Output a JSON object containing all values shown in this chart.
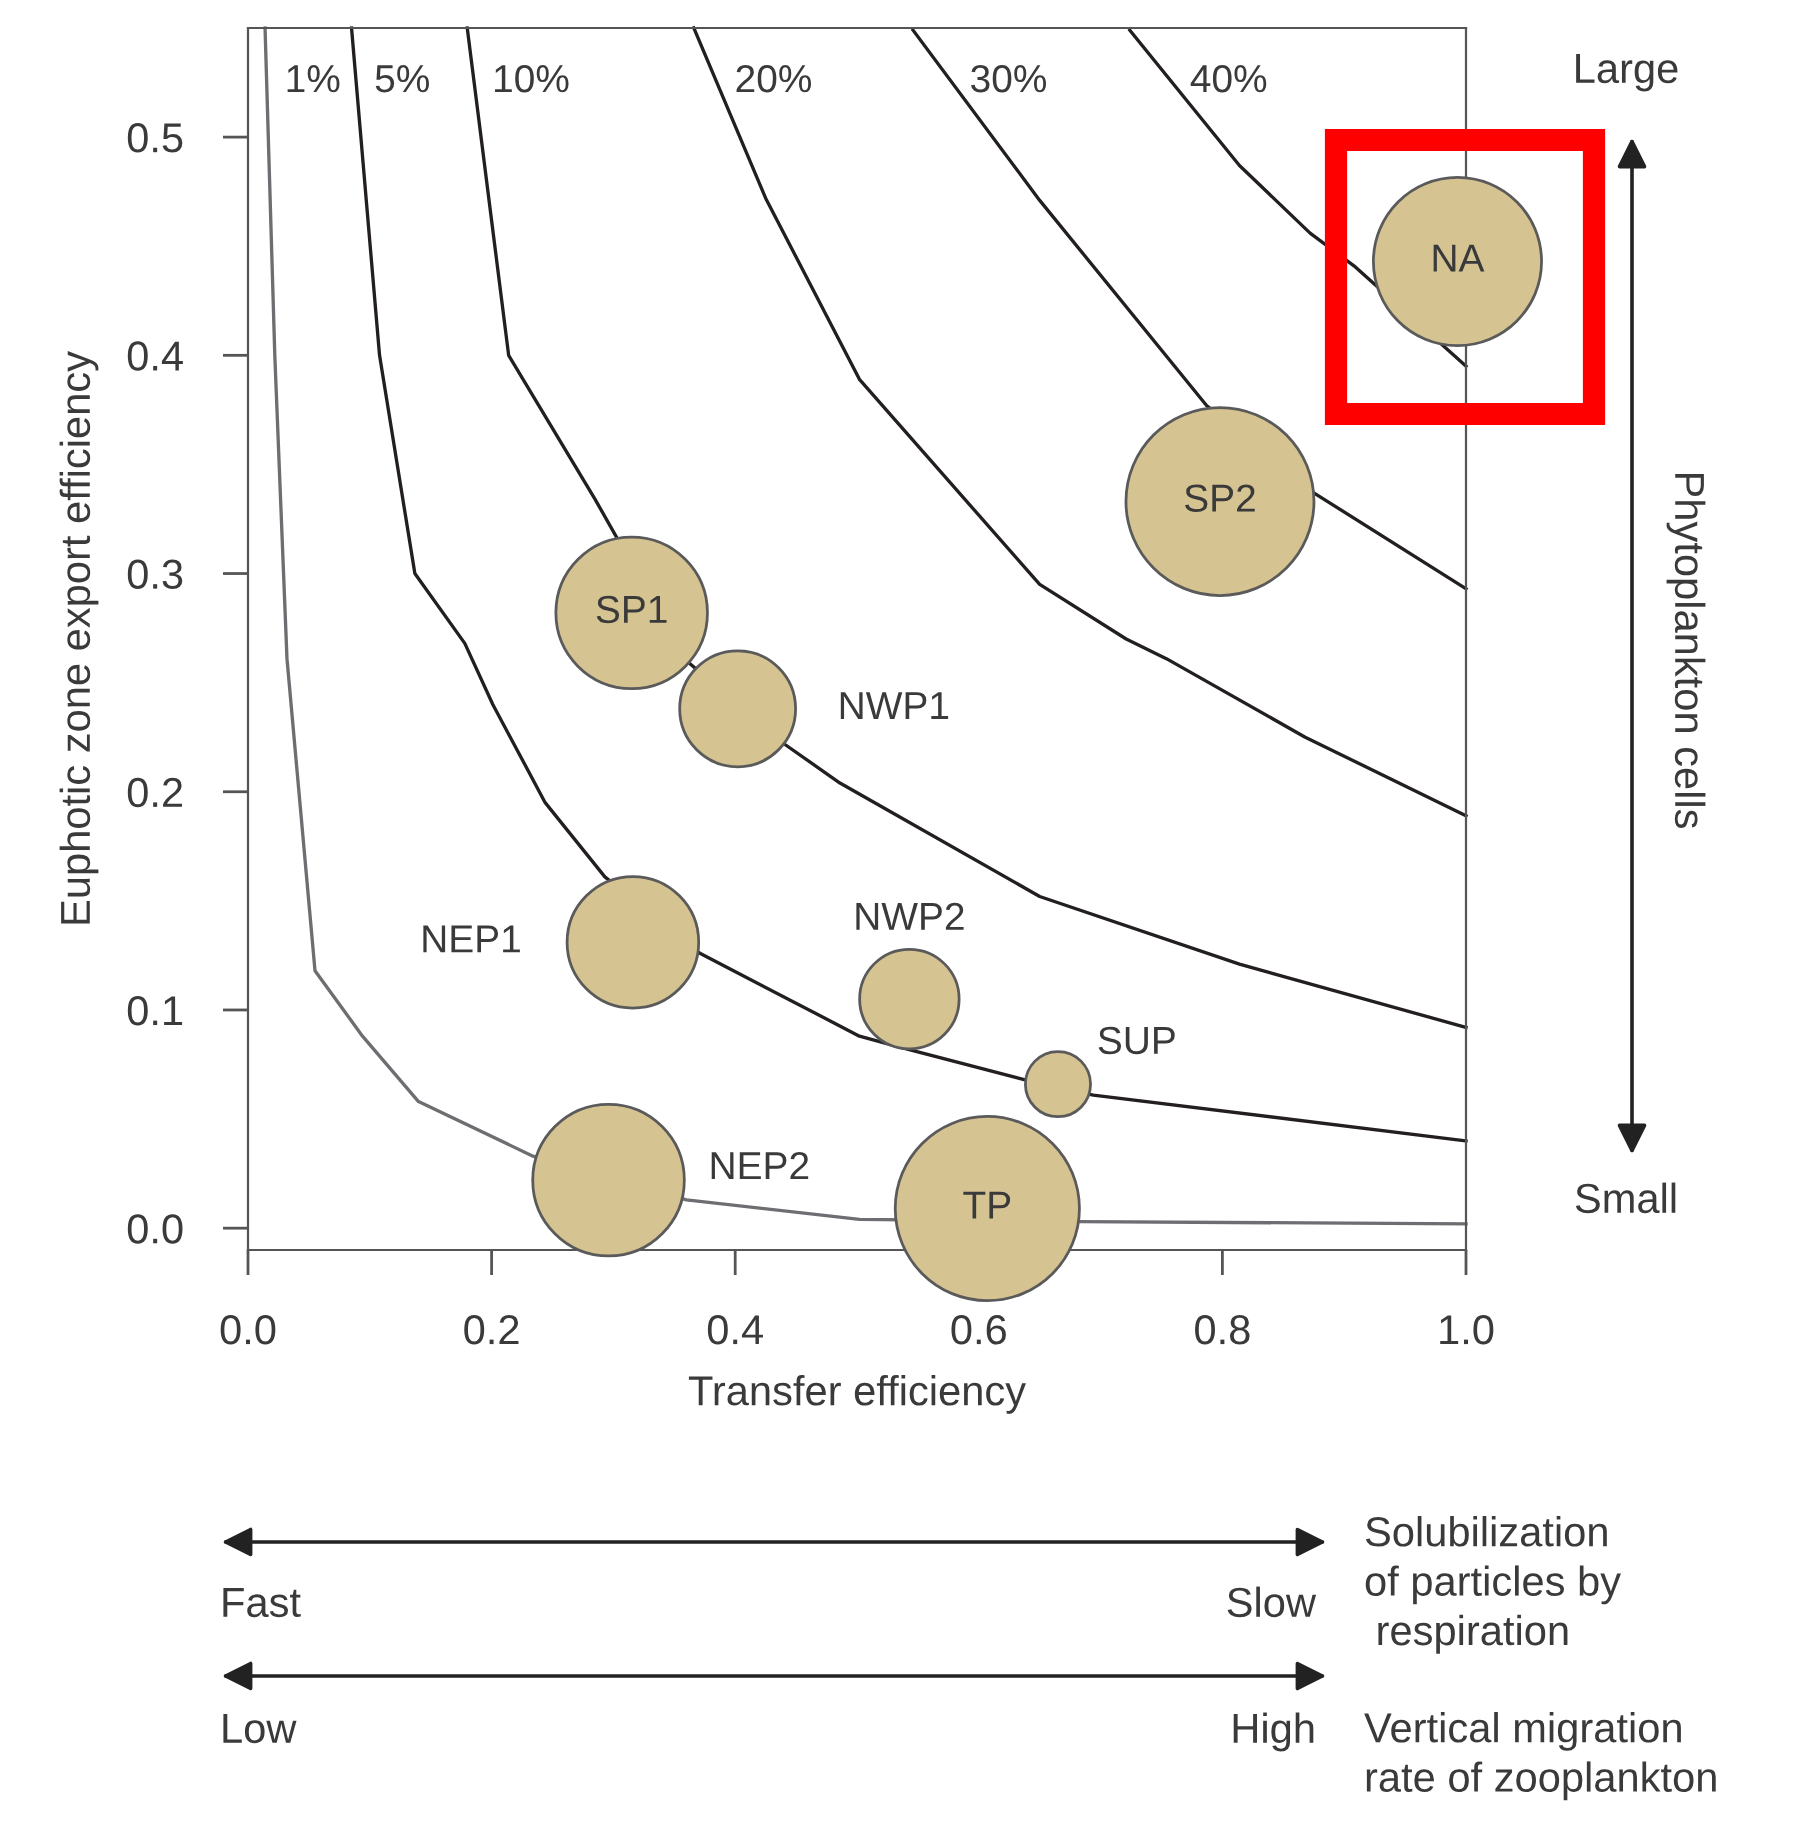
{
  "chart_data": {
    "type": "bubble",
    "xlabel": "Transfer efficiency",
    "ylabel": "Euphotic zone export efficiency",
    "xlim": [
      0,
      1
    ],
    "ylim": [
      -0.01,
      0.55
    ],
    "xticks": [
      {
        "value": 0,
        "label": "0.0"
      },
      0.2,
      0.4,
      0.6,
      0.8,
      {
        "value": 1,
        "label": "1.0"
      }
    ],
    "yticks": [
      {
        "value": 0,
        "label": "0.0"
      },
      0.1,
      0.2,
      0.3,
      0.4,
      0.5
    ],
    "grid": false,
    "legend": false,
    "line_style": "solid",
    "series": [
      {
        "name": "1%",
        "type": "line",
        "marker": "none",
        "color": "#6d6e71",
        "x": [
          0.014,
          0.022,
          0.032,
          0.055,
          0.094,
          0.14,
          0.234,
          0.36,
          0.502,
          0.683,
          1.0
        ],
        "values": [
          0.55,
          0.4,
          0.261,
          0.118,
          0.088,
          0.058,
          0.033,
          0.013,
          0.004,
          0.003,
          0.002
        ]
      },
      {
        "name": "5%",
        "type": "line",
        "marker": "none",
        "color": "#231f20",
        "x": [
          0.085,
          0.108,
          0.137,
          0.178,
          0.201,
          0.244,
          0.293,
          0.371,
          0.502,
          0.535,
          0.638,
          0.694,
          1.0
        ],
        "values": [
          0.55,
          0.4,
          0.3,
          0.268,
          0.24,
          0.195,
          0.161,
          0.126,
          0.088,
          0.083,
          0.068,
          0.061,
          0.04
        ]
      },
      {
        "name": "10%",
        "type": "line",
        "marker": "none",
        "color": "#231f20",
        "x": [
          0.18,
          0.214,
          0.285,
          0.36,
          0.44,
          0.486,
          0.65,
          0.814,
          1.0
        ],
        "values": [
          0.55,
          0.4,
          0.334,
          0.26,
          0.222,
          0.204,
          0.152,
          0.121,
          0.092
        ]
      },
      {
        "name": "20%",
        "type": "line",
        "marker": "none",
        "color": "#231f20",
        "x": [
          0.366,
          0.425,
          0.502,
          0.65,
          0.721,
          0.754,
          0.868,
          1.0
        ],
        "values": [
          0.55,
          0.472,
          0.389,
          0.295,
          0.27,
          0.261,
          0.225,
          0.189
        ]
      },
      {
        "name": "30%",
        "type": "line",
        "marker": "none",
        "color": "#231f20",
        "x": [
          0.546,
          0.65,
          0.787,
          0.875,
          1.0
        ],
        "values": [
          0.549,
          0.471,
          0.377,
          0.337,
          0.293
        ]
      },
      {
        "name": "40%",
        "type": "line",
        "marker": "none",
        "color": "#231f20",
        "x": [
          0.724,
          0.814,
          0.872,
          0.908,
          1.0
        ],
        "values": [
          0.549,
          0.487,
          0.456,
          0.441,
          0.395
        ]
      },
      {
        "name": "NA",
        "color": "#d6c392",
        "x": [
          0.993
        ],
        "values": [
          0.443
        ],
        "sizes": [
          0.8
        ]
      },
      {
        "name": "SP2",
        "color": "#d6c392",
        "x": [
          0.798
        ],
        "values": [
          0.333
        ],
        "sizes": [
          1.0
        ]
      },
      {
        "name": "SP1",
        "color": "#d6c392",
        "x": [
          0.315
        ],
        "values": [
          0.282
        ],
        "sizes": [
          0.65
        ]
      },
      {
        "name": "NWP1",
        "color": "#d6c392",
        "x": [
          0.402
        ],
        "values": [
          0.238
        ],
        "sizes": [
          0.38
        ]
      },
      {
        "name": "NEP1",
        "color": "#d6c392",
        "x": [
          0.316
        ],
        "values": [
          0.131
        ],
        "sizes": [
          0.49
        ]
      },
      {
        "name": "NWP2",
        "color": "#d6c392",
        "x": [
          0.543
        ],
        "values": [
          0.105
        ],
        "sizes": [
          0.28
        ]
      },
      {
        "name": "SUP",
        "color": "#d6c392",
        "x": [
          0.665
        ],
        "values": [
          0.066
        ],
        "sizes": [
          0.12
        ]
      },
      {
        "name": "NEP2",
        "color": "#d6c392",
        "x": [
          0.296
        ],
        "values": [
          0.022
        ],
        "sizes": [
          0.65
        ]
      },
      {
        "name": "TP",
        "color": "#d6c392",
        "x": [
          0.607
        ],
        "values": [
          0.009
        ],
        "sizes": [
          0.96
        ]
      }
    ],
    "annotations": [
      "Large",
      "Phytoplankton cells",
      "Small",
      "Fast",
      "Slow",
      "Solubilization\nof particles by\n respiration",
      "Low",
      "High",
      "Vertical migration\nrate of zooplankton"
    ]
  }
}
